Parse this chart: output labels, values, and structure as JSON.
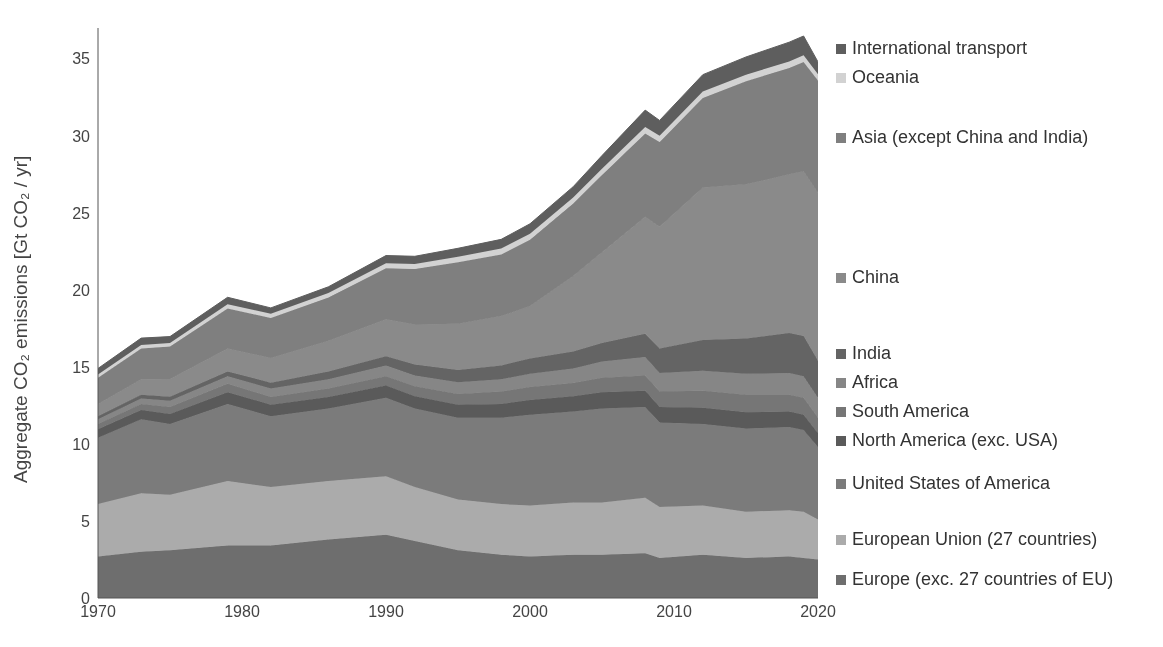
{
  "chart_data": {
    "type": "area",
    "stacked": true,
    "ylabel": "Aggregate CO₂ emissions [Gt CO₂ / yr]",
    "x": [
      1970,
      1973,
      1975,
      1979,
      1982,
      1986,
      1990,
      1992,
      1995,
      1998,
      2000,
      2003,
      2005,
      2008,
      2009,
      2012,
      2015,
      2018,
      2019,
      2020
    ],
    "xlim": [
      1970,
      2020
    ],
    "xticks": [
      1970,
      1980,
      1990,
      2000,
      2010,
      2020
    ],
    "ylim": [
      0,
      37
    ],
    "yticks": [
      0,
      5,
      10,
      15,
      20,
      25,
      30,
      35
    ],
    "grid": false,
    "legend": "right",
    "series": [
      {
        "name": "Europe (exc. 27 countries of EU)",
        "color": "#6e6e6e",
        "values": [
          2.7,
          3.0,
          3.1,
          3.4,
          3.4,
          3.8,
          4.1,
          3.7,
          3.1,
          2.8,
          2.7,
          2.8,
          2.8,
          2.9,
          2.6,
          2.8,
          2.6,
          2.7,
          2.6,
          2.5
        ]
      },
      {
        "name": "European Union (27 countries)",
        "color": "#ababab",
        "values": [
          3.4,
          3.8,
          3.6,
          4.2,
          3.8,
          3.8,
          3.8,
          3.5,
          3.3,
          3.3,
          3.3,
          3.4,
          3.4,
          3.6,
          3.3,
          3.2,
          3.0,
          3.0,
          3.0,
          2.6
        ]
      },
      {
        "name": "United States of America",
        "color": "#7b7b7b",
        "values": [
          4.3,
          4.8,
          4.6,
          5.0,
          4.6,
          4.7,
          5.1,
          5.1,
          5.3,
          5.6,
          5.9,
          5.9,
          6.1,
          5.9,
          5.5,
          5.3,
          5.4,
          5.4,
          5.3,
          4.7
        ]
      },
      {
        "name": "North America (exc. USA)",
        "color": "#5a5a5a",
        "values": [
          0.55,
          0.6,
          0.65,
          0.75,
          0.75,
          0.75,
          0.8,
          0.8,
          0.85,
          0.9,
          0.95,
          1.0,
          1.05,
          1.05,
          1.0,
          1.05,
          1.05,
          1.0,
          1.0,
          0.9
        ]
      },
      {
        "name": "South America",
        "color": "#767676",
        "values": [
          0.35,
          0.4,
          0.45,
          0.55,
          0.5,
          0.55,
          0.6,
          0.65,
          0.7,
          0.8,
          0.85,
          0.85,
          0.95,
          1.0,
          1.0,
          1.1,
          1.15,
          1.1,
          1.1,
          1.0
        ]
      },
      {
        "name": "Africa",
        "color": "#868686",
        "values": [
          0.3,
          0.35,
          0.4,
          0.5,
          0.55,
          0.6,
          0.7,
          0.7,
          0.75,
          0.8,
          0.85,
          0.95,
          1.05,
          1.2,
          1.2,
          1.3,
          1.35,
          1.4,
          1.4,
          1.3
        ]
      },
      {
        "name": "India",
        "color": "#646464",
        "values": [
          0.2,
          0.25,
          0.27,
          0.3,
          0.38,
          0.5,
          0.6,
          0.7,
          0.8,
          0.9,
          1.0,
          1.1,
          1.2,
          1.5,
          1.6,
          2.0,
          2.3,
          2.6,
          2.6,
          2.4
        ]
      },
      {
        "name": "China",
        "color": "#8a8a8a",
        "values": [
          0.8,
          1.0,
          1.15,
          1.5,
          1.6,
          2.0,
          2.4,
          2.6,
          3.0,
          3.2,
          3.4,
          4.9,
          5.9,
          7.6,
          7.9,
          9.9,
          10.0,
          10.3,
          10.7,
          10.9
        ]
      },
      {
        "name": "Asia (except China and India)",
        "color": "#7f7f7f",
        "values": [
          1.7,
          2.0,
          2.1,
          2.6,
          2.6,
          2.8,
          3.3,
          3.6,
          4.0,
          4.0,
          4.3,
          4.7,
          5.0,
          5.4,
          5.5,
          5.8,
          6.7,
          6.9,
          7.1,
          7.3
        ]
      },
      {
        "name": "Oceania",
        "color": "#d2d2d2",
        "values": [
          0.2,
          0.22,
          0.23,
          0.27,
          0.27,
          0.3,
          0.33,
          0.33,
          0.35,
          0.38,
          0.39,
          0.4,
          0.42,
          0.42,
          0.4,
          0.42,
          0.42,
          0.43,
          0.43,
          0.4
        ]
      },
      {
        "name": "International transport",
        "color": "#5e5e5e",
        "values": [
          0.4,
          0.45,
          0.42,
          0.45,
          0.38,
          0.4,
          0.5,
          0.5,
          0.55,
          0.6,
          0.65,
          0.7,
          0.85,
          1.1,
          1.0,
          1.1,
          1.15,
          1.25,
          1.25,
          0.8
        ]
      }
    ]
  }
}
